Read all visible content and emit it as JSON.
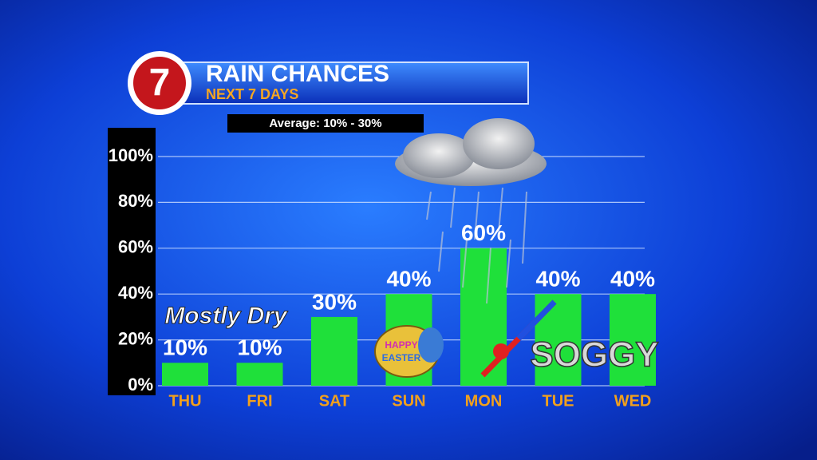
{
  "chart_data": {
    "type": "bar",
    "logo": "7",
    "title": "RAIN CHANCES",
    "subtitle": "NEXT 7 DAYS",
    "note": "Average: 10% - 30%",
    "categories": [
      "THU",
      "FRI",
      "SAT",
      "SUN",
      "MON",
      "TUE",
      "WED"
    ],
    "values": [
      10,
      10,
      30,
      40,
      60,
      40,
      40
    ],
    "value_labels": [
      "10%",
      "10%",
      "30%",
      "40%",
      "60%",
      "40%",
      "40%"
    ],
    "color": "#1fe03a",
    "ylim": [
      0,
      100
    ],
    "yticks": [
      {
        "value": 0,
        "label": "0%"
      },
      {
        "value": 20,
        "label": "20%"
      },
      {
        "value": 40,
        "label": "40%"
      },
      {
        "value": 60,
        "label": "60%"
      },
      {
        "value": 80,
        "label": "80%"
      },
      {
        "value": 100,
        "label": "100%"
      }
    ],
    "grid": true,
    "annotations": [
      "Mostly Dry",
      "HAPPY",
      "EASTER",
      "SOGGY"
    ]
  }
}
